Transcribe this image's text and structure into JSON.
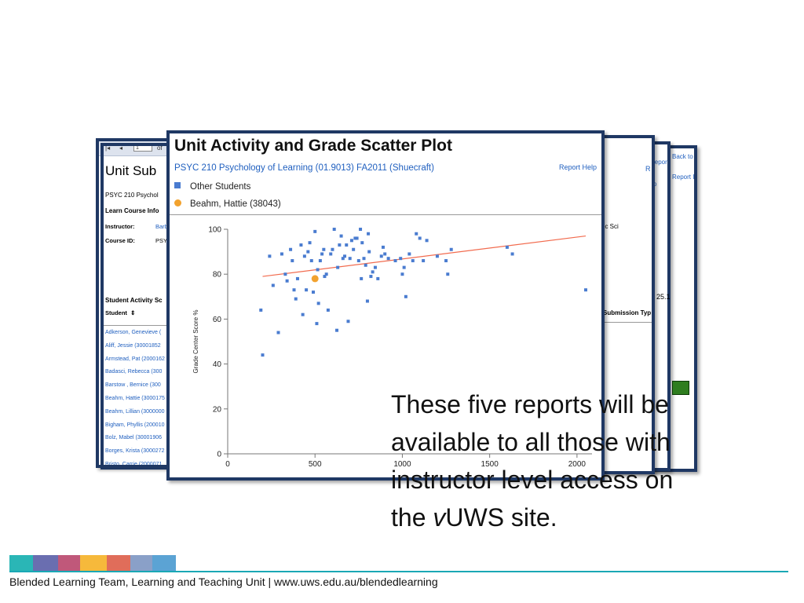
{
  "back_windows": {
    "far_right": {
      "links": [
        "Back to",
        "Report I"
      ]
    },
    "mid_right": {
      "links": [
        "Report",
        "lp"
      ]
    },
    "right": {
      "help_link": "R",
      "field_text": "oc Sci",
      "number_value": "25.1",
      "column_header": "Submission Typ"
    },
    "left": {
      "toolbar_page_box": "1",
      "toolbar_of": "of",
      "title": "Unit Sub",
      "course_line": "PSYC 210 Psychol",
      "section_label": "Learn Course Info",
      "instructor_label": "Instructor:",
      "instructor_value": "Barb",
      "course_id_label": "Course ID:",
      "course_id_value": "PSY",
      "activity_label": "Student Activity Sc",
      "student_col": "Student",
      "students": [
        "Adkerson, Genevieve (",
        "Aliff, Jessie (30001852",
        "Armstead, Pat (2000162",
        "Badasci, Rebecca (300",
        "Barstow , Bernice (300",
        "Beahm, Hattie (3000175",
        "Beahm, Lillian (3000000",
        "Bigham, Phyllis (200010",
        "Bolz, Mabel (30001906",
        "Borges, Krista (3000272",
        "Bristo, Carrie (2000071"
      ]
    }
  },
  "report": {
    "title": "Unit Activity and Grade Scatter Plot",
    "subtitle": "PSYC 210 Psychology of Learning (01.9013) FA2011 (Shuecraft)",
    "help_link": "Report Help",
    "legend": [
      {
        "label": "Other Students",
        "marker": "square",
        "color": "#4a7cd0"
      },
      {
        "label": "Beahm, Hattie (38043)",
        "marker": "circle",
        "color": "#f2a22e"
      }
    ]
  },
  "chart_data": {
    "type": "scatter",
    "title": "",
    "xlabel": "",
    "ylabel": "Grade Center Score %",
    "xlim": [
      0,
      2050
    ],
    "ylim": [
      0,
      100
    ],
    "xticks": [
      0,
      500,
      1000,
      1500,
      2000
    ],
    "yticks": [
      0,
      20,
      40,
      60,
      80,
      100
    ],
    "grid": false,
    "series": [
      {
        "name": "Other Students",
        "marker": "square",
        "color": "#4a7cd0",
        "points": [
          [
            190,
            64
          ],
          [
            200,
            44
          ],
          [
            240,
            88
          ],
          [
            260,
            75
          ],
          [
            290,
            54
          ],
          [
            310,
            89
          ],
          [
            330,
            80
          ],
          [
            340,
            77
          ],
          [
            360,
            91
          ],
          [
            370,
            86
          ],
          [
            380,
            73
          ],
          [
            390,
            69
          ],
          [
            400,
            78
          ],
          [
            420,
            93
          ],
          [
            430,
            62
          ],
          [
            440,
            88
          ],
          [
            450,
            73
          ],
          [
            460,
            90
          ],
          [
            470,
            94
          ],
          [
            480,
            86
          ],
          [
            490,
            72
          ],
          [
            500,
            99
          ],
          [
            510,
            58
          ],
          [
            515,
            82
          ],
          [
            520,
            67
          ],
          [
            530,
            86
          ],
          [
            540,
            89
          ],
          [
            550,
            91
          ],
          [
            555,
            79
          ],
          [
            565,
            80
          ],
          [
            575,
            64
          ],
          [
            590,
            89
          ],
          [
            600,
            91
          ],
          [
            610,
            100
          ],
          [
            625,
            55
          ],
          [
            630,
            83
          ],
          [
            640,
            93
          ],
          [
            650,
            97
          ],
          [
            660,
            87
          ],
          [
            670,
            88
          ],
          [
            680,
            93
          ],
          [
            690,
            59
          ],
          [
            700,
            87
          ],
          [
            710,
            95
          ],
          [
            720,
            91
          ],
          [
            730,
            96
          ],
          [
            740,
            96
          ],
          [
            750,
            86
          ],
          [
            760,
            100
          ],
          [
            765,
            78
          ],
          [
            770,
            94
          ],
          [
            780,
            87
          ],
          [
            790,
            84
          ],
          [
            800,
            68
          ],
          [
            805,
            98
          ],
          [
            810,
            90
          ],
          [
            820,
            79
          ],
          [
            830,
            81
          ],
          [
            845,
            83
          ],
          [
            860,
            78
          ],
          [
            880,
            88
          ],
          [
            890,
            92
          ],
          [
            900,
            89
          ],
          [
            920,
            87
          ],
          [
            960,
            86
          ],
          [
            990,
            87
          ],
          [
            1000,
            80
          ],
          [
            1010,
            83
          ],
          [
            1020,
            70
          ],
          [
            1040,
            89
          ],
          [
            1060,
            86
          ],
          [
            1080,
            98
          ],
          [
            1100,
            96
          ],
          [
            1120,
            86
          ],
          [
            1140,
            95
          ],
          [
            1200,
            88
          ],
          [
            1250,
            86
          ],
          [
            1260,
            80
          ],
          [
            1280,
            91
          ],
          [
            1600,
            92
          ],
          [
            1630,
            89
          ],
          [
            2050,
            73
          ]
        ]
      },
      {
        "name": "Beahm, Hattie (38043)",
        "marker": "circle",
        "color": "#f2a22e",
        "points": [
          [
            500,
            78
          ]
        ]
      }
    ],
    "trendline": {
      "color": "#f26b4e",
      "from": [
        200,
        79
      ],
      "to": [
        2050,
        97
      ]
    }
  },
  "caption": {
    "line1": "These five reports will be",
    "line2": "available to all those with",
    "line3": "instructor level access on",
    "line4_prefix": "the ",
    "line4_italic": "v",
    "line4_suffix": "UWS site."
  },
  "footer": {
    "text": "Blended Learning Team, Learning and Teaching Unit | www.uws.edu.au/blendedlearning",
    "bar_colors": [
      "#2ab6b6",
      "#6a6eb0",
      "#c0587a",
      "#f6b93b",
      "#e06d5a",
      "#8aa0c8",
      "#5ba3d4"
    ]
  }
}
